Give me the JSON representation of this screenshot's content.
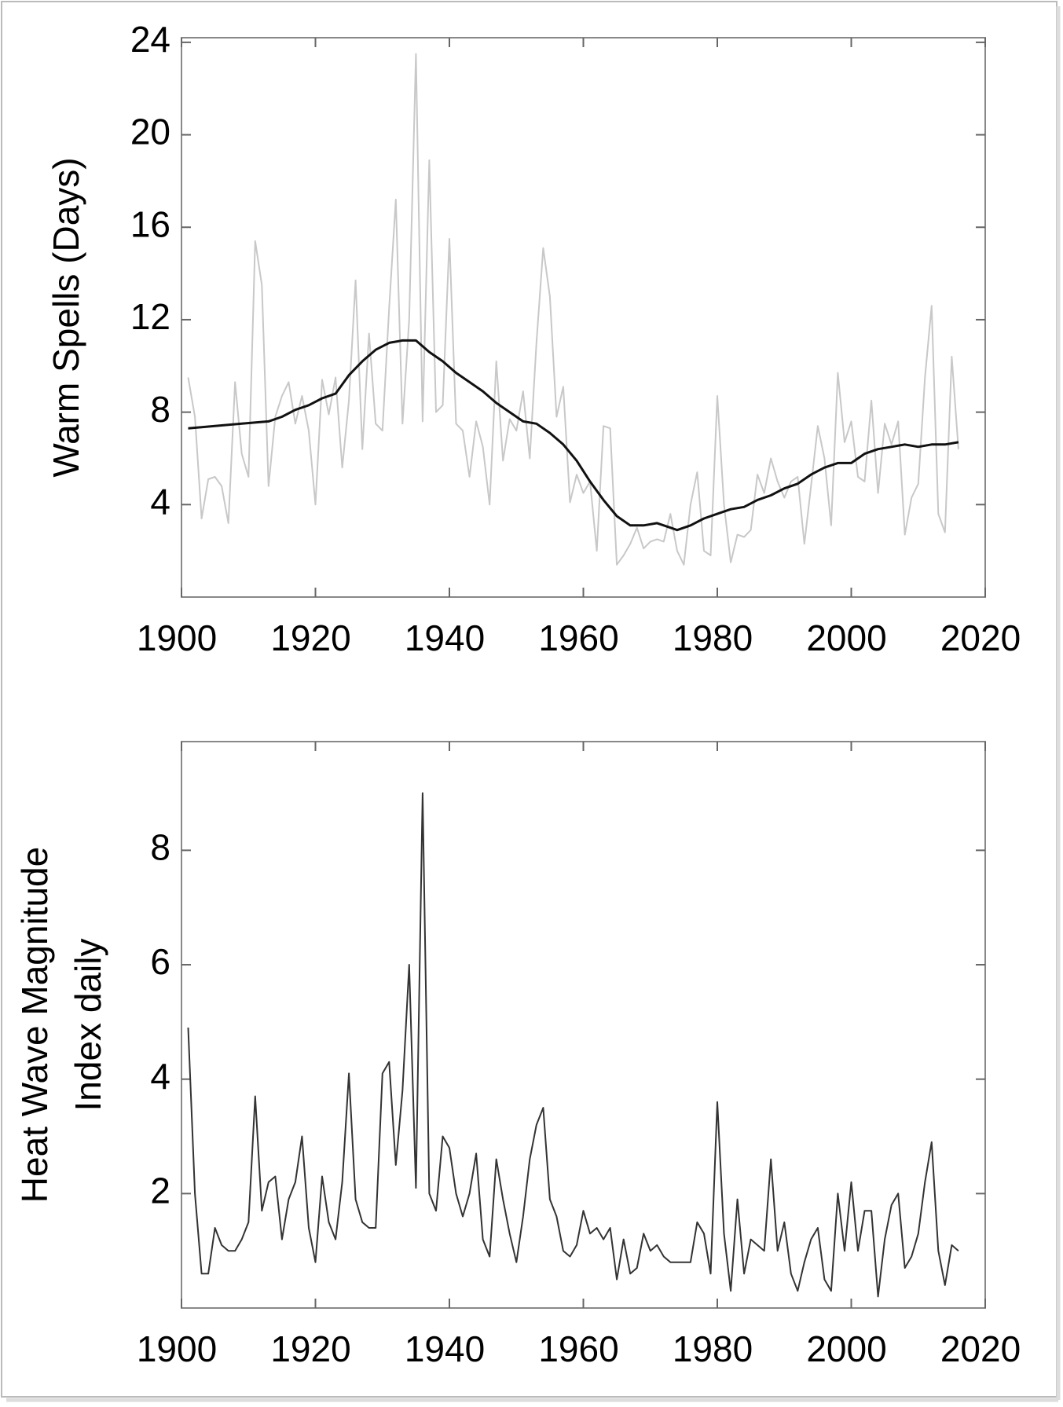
{
  "chart_data": [
    {
      "type": "line",
      "ylabel": "Warm Spells (Days)",
      "xlim": [
        1900,
        2020
      ],
      "xticks": [
        1900,
        1920,
        1940,
        1960,
        1980,
        2000,
        2020
      ],
      "ylim": [
        0,
        24.2
      ],
      "yticks": [
        4,
        8,
        12,
        16,
        20,
        24
      ],
      "series": [
        {
          "color": "#c8c8c8",
          "x": [
            1901,
            1902,
            1903,
            1904,
            1905,
            1906,
            1907,
            1908,
            1909,
            1910,
            1911,
            1912,
            1913,
            1914,
            1915,
            1916,
            1917,
            1918,
            1919,
            1920,
            1921,
            1922,
            1923,
            1924,
            1925,
            1926,
            1927,
            1928,
            1929,
            1930,
            1931,
            1932,
            1933,
            1934,
            1935,
            1936,
            1937,
            1938,
            1939,
            1940,
            1941,
            1942,
            1943,
            1944,
            1945,
            1946,
            1947,
            1948,
            1949,
            1950,
            1951,
            1952,
            1953,
            1954,
            1955,
            1956,
            1957,
            1958,
            1959,
            1960,
            1961,
            1962,
            1963,
            1964,
            1965,
            1966,
            1967,
            1968,
            1969,
            1970,
            1971,
            1972,
            1973,
            1974,
            1975,
            1976,
            1977,
            1978,
            1979,
            1980,
            1981,
            1982,
            1983,
            1984,
            1985,
            1986,
            1987,
            1988,
            1989,
            1990,
            1991,
            1992,
            1993,
            1994,
            1995,
            1996,
            1997,
            1998,
            1999,
            2000,
            2001,
            2002,
            2003,
            2004,
            2005,
            2006,
            2007,
            2008,
            2009,
            2010,
            2011,
            2012,
            2013,
            2014,
            2015,
            2016
          ],
          "values": [
            9.5,
            7.8,
            3.4,
            5.1,
            5.2,
            4.8,
            3.2,
            9.3,
            6.2,
            5.2,
            15.4,
            13.5,
            4.8,
            7.8,
            8.7,
            9.3,
            7.5,
            8.7,
            7.2,
            4.0,
            9.4,
            7.9,
            9.5,
            5.6,
            8.5,
            13.7,
            6.4,
            11.4,
            7.5,
            7.2,
            12.5,
            17.2,
            7.5,
            12.0,
            23.5,
            7.6,
            18.9,
            8.0,
            8.3,
            15.5,
            7.5,
            7.2,
            5.2,
            7.6,
            6.5,
            4.0,
            10.2,
            5.9,
            7.7,
            7.2,
            8.9,
            6.0,
            11.0,
            15.1,
            13.0,
            7.8,
            9.1,
            4.1,
            5.3,
            4.5,
            5.0,
            2.0,
            7.4,
            7.3,
            1.4,
            1.8,
            2.3,
            3.0,
            2.1,
            2.4,
            2.5,
            2.4,
            3.6,
            2.0,
            1.4,
            4.0,
            5.4,
            2.0,
            1.8,
            8.7,
            4.0,
            1.5,
            2.7,
            2.6,
            2.9,
            5.3,
            4.5,
            6.0,
            5.0,
            4.3,
            5.0,
            5.2,
            2.3,
            4.8,
            7.4,
            6.0,
            3.1,
            9.7,
            6.7,
            7.6,
            5.2,
            5.0,
            8.5,
            4.5,
            7.5,
            6.6,
            7.6,
            2.7,
            4.3,
            4.9,
            9.5,
            12.6,
            3.6,
            2.8,
            10.4,
            6.4
          ]
        },
        {
          "color": "#111111",
          "x": [
            1901,
            1905,
            1909,
            1913,
            1915,
            1917,
            1919,
            1921,
            1923,
            1925,
            1927,
            1929,
            1931,
            1933,
            1935,
            1937,
            1939,
            1941,
            1943,
            1945,
            1947,
            1949,
            1951,
            1953,
            1955,
            1957,
            1959,
            1961,
            1963,
            1965,
            1967,
            1969,
            1971,
            1973,
            1974,
            1976,
            1978,
            1980,
            1982,
            1984,
            1986,
            1988,
            1990,
            1992,
            1994,
            1996,
            1998,
            2000,
            2002,
            2004,
            2006,
            2008,
            2010,
            2012,
            2014,
            2016
          ],
          "values": [
            7.3,
            7.4,
            7.5,
            7.6,
            7.8,
            8.1,
            8.3,
            8.6,
            8.8,
            9.6,
            10.2,
            10.7,
            11.0,
            11.1,
            11.1,
            10.6,
            10.2,
            9.7,
            9.3,
            8.9,
            8.4,
            8.0,
            7.6,
            7.5,
            7.1,
            6.6,
            5.9,
            5.0,
            4.2,
            3.5,
            3.1,
            3.1,
            3.2,
            3.0,
            2.9,
            3.1,
            3.4,
            3.6,
            3.8,
            3.9,
            4.2,
            4.4,
            4.7,
            4.9,
            5.3,
            5.6,
            5.8,
            5.8,
            6.2,
            6.4,
            6.5,
            6.6,
            6.5,
            6.6,
            6.6,
            6.7
          ]
        }
      ]
    },
    {
      "type": "line",
      "ylabel": [
        "Heat Wave Magnitude",
        "Index daily"
      ],
      "xlim": [
        1900,
        2020
      ],
      "xticks": [
        1900,
        1920,
        1940,
        1960,
        1980,
        2000,
        2020
      ],
      "ylim": [
        0,
        9.9
      ],
      "yticks": [
        2,
        4,
        6,
        8
      ],
      "series": [
        {
          "color": "#333333",
          "x": [
            1901,
            1902,
            1903,
            1904,
            1905,
            1906,
            1907,
            1908,
            1909,
            1910,
            1911,
            1912,
            1913,
            1914,
            1915,
            1916,
            1917,
            1918,
            1919,
            1920,
            1921,
            1922,
            1923,
            1924,
            1925,
            1926,
            1927,
            1928,
            1929,
            1930,
            1931,
            1932,
            1933,
            1934,
            1935,
            1936,
            1937,
            1938,
            1939,
            1940,
            1941,
            1942,
            1943,
            1944,
            1945,
            1946,
            1947,
            1948,
            1949,
            1950,
            1951,
            1952,
            1953,
            1954,
            1955,
            1956,
            1957,
            1958,
            1959,
            1960,
            1961,
            1962,
            1963,
            1964,
            1965,
            1966,
            1967,
            1968,
            1969,
            1970,
            1971,
            1972,
            1973,
            1974,
            1975,
            1976,
            1977,
            1978,
            1979,
            1980,
            1981,
            1982,
            1983,
            1984,
            1985,
            1986,
            1987,
            1988,
            1989,
            1990,
            1991,
            1992,
            1993,
            1994,
            1995,
            1996,
            1997,
            1998,
            1999,
            2000,
            2001,
            2002,
            2003,
            2004,
            2005,
            2006,
            2007,
            2008,
            2009,
            2010,
            2011,
            2012,
            2013,
            2014,
            2015,
            2016
          ],
          "values": [
            4.9,
            2.0,
            0.6,
            0.6,
            1.4,
            1.1,
            1.0,
            1.0,
            1.2,
            1.5,
            3.7,
            1.7,
            2.2,
            2.3,
            1.2,
            1.9,
            2.2,
            3.0,
            1.4,
            0.8,
            2.3,
            1.5,
            1.2,
            2.2,
            4.1,
            1.9,
            1.5,
            1.4,
            1.4,
            4.1,
            4.3,
            2.5,
            3.8,
            6.0,
            2.1,
            9.0,
            2.0,
            1.7,
            3.0,
            2.8,
            2.0,
            1.6,
            2.0,
            2.7,
            1.2,
            0.9,
            2.6,
            1.9,
            1.3,
            0.8,
            1.6,
            2.6,
            3.2,
            3.5,
            1.9,
            1.6,
            1.0,
            0.9,
            1.1,
            1.7,
            1.3,
            1.4,
            1.2,
            1.4,
            0.5,
            1.2,
            0.6,
            0.7,
            1.3,
            1.0,
            1.1,
            0.9,
            0.8,
            0.8,
            0.8,
            0.8,
            1.5,
            1.3,
            0.6,
            3.6,
            1.3,
            0.3,
            1.9,
            0.6,
            1.2,
            1.1,
            1.0,
            2.6,
            1.0,
            1.5,
            0.6,
            0.3,
            0.8,
            1.2,
            1.4,
            0.5,
            0.3,
            2.0,
            1.0,
            2.2,
            1.0,
            1.7,
            1.7,
            0.2,
            1.2,
            1.8,
            2.0,
            0.7,
            0.9,
            1.3,
            2.2,
            2.9,
            1.0,
            0.4,
            1.1,
            1.0
          ]
        }
      ]
    }
  ]
}
